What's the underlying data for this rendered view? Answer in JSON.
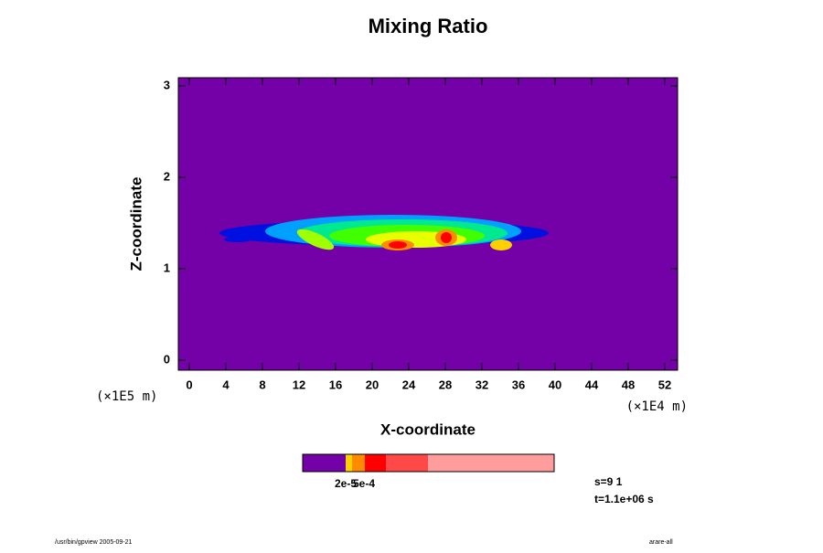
{
  "chart_data": {
    "type": "contour",
    "title": "Mixing Ratio",
    "x_label": "X-coordinate",
    "y_label": "Z-coordinate",
    "x_unit": "(×1E4 m)",
    "y_unit": "(×1E5 m)",
    "xlim": [
      -1.2,
      53.4
    ],
    "ylim": [
      -0.11,
      3.09
    ],
    "xticks": [
      0,
      4,
      8,
      12,
      16,
      20,
      24,
      28,
      32,
      36,
      40,
      44,
      48,
      52
    ],
    "yticks": [
      0,
      1,
      2,
      3
    ],
    "background_color": "#7400a8",
    "colorbar": {
      "colors": [
        "#7400a8",
        "#ffd000",
        "#ff8c00",
        "#ff0000",
        "#ff4848",
        "#ff9c9c"
      ],
      "labels": [
        "2e-5",
        "5e-4"
      ]
    },
    "annotations": [
      "s=9 1",
      "t=1.1e+06 s"
    ],
    "footer_left": "/usr/bin/gpview 2005-09-21",
    "footer_right": "arare-all"
  }
}
